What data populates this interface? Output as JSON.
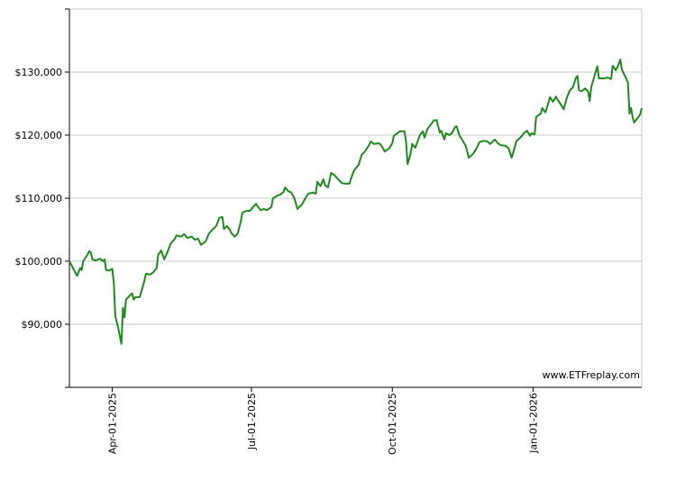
{
  "chart_data": {
    "type": "line",
    "color": "#1e8a1e",
    "watermark": "www.ETFreplay.com",
    "grid": true,
    "ylim": [
      80000,
      140000
    ],
    "yticks": [
      {
        "value": 90000,
        "label": "$90,000"
      },
      {
        "value": 100000,
        "label": "$100,000"
      },
      {
        "value": 110000,
        "label": "$110,000"
      },
      {
        "value": 120000,
        "label": "$120,000"
      },
      {
        "value": 130000,
        "label": "$130,000"
      }
    ],
    "xlim": [
      "2025-03-04",
      "2026-03-13"
    ],
    "xticks": [
      {
        "value": "2025-04-01",
        "label": "Apr-01-2025"
      },
      {
        "value": "2025-07-01",
        "label": "Jul-01-2025"
      },
      {
        "value": "2025-10-01",
        "label": "Oct-01-2025"
      },
      {
        "value": "2026-01-01",
        "label": "Jan-01-2026"
      }
    ],
    "x": [
      "2025-03-04",
      "2025-03-07",
      "2025-03-09",
      "2025-03-11",
      "2025-03-12",
      "2025-03-13",
      "2025-03-16",
      "2025-03-17",
      "2025-03-18",
      "2025-03-19",
      "2025-03-21",
      "2025-03-24",
      "2025-03-26",
      "2025-03-27",
      "2025-03-28",
      "2025-03-30",
      "2025-04-01",
      "2025-04-02",
      "2025-04-03",
      "2025-04-05",
      "2025-04-07",
      "2025-04-08",
      "2025-04-09",
      "2025-04-10",
      "2025-04-13",
      "2025-04-14",
      "2025-04-15",
      "2025-04-16",
      "2025-04-19",
      "2025-04-22",
      "2025-04-23",
      "2025-04-26",
      "2025-04-28",
      "2025-04-30",
      "2025-05-01",
      "2025-05-03",
      "2025-05-05",
      "2025-05-07",
      "2025-05-09",
      "2025-05-12",
      "2025-05-13",
      "2025-05-16",
      "2025-05-18",
      "2025-05-20",
      "2025-05-23",
      "2025-05-25",
      "2025-05-27",
      "2025-05-29",
      "2025-06-01",
      "2025-06-03",
      "2025-06-05",
      "2025-06-08",
      "2025-06-10",
      "2025-06-12",
      "2025-06-13",
      "2025-06-15",
      "2025-06-17",
      "2025-06-18",
      "2025-06-20",
      "2025-06-22",
      "2025-06-24",
      "2025-06-25",
      "2025-06-28",
      "2025-06-30",
      "2025-07-02",
      "2025-07-04",
      "2025-07-05",
      "2025-07-07",
      "2025-07-09",
      "2025-07-11",
      "2025-07-14",
      "2025-07-15",
      "2025-07-18",
      "2025-07-20",
      "2025-07-22",
      "2025-07-23",
      "2025-07-25",
      "2025-07-27",
      "2025-07-29",
      "2025-07-31",
      "2025-08-03",
      "2025-08-05",
      "2025-08-07",
      "2025-08-10",
      "2025-08-12",
      "2025-08-13",
      "2025-08-15",
      "2025-08-17",
      "2025-08-18",
      "2025-08-20",
      "2025-08-22",
      "2025-08-24",
      "2025-08-27",
      "2025-08-29",
      "2025-08-31",
      "2025-09-03",
      "2025-09-04",
      "2025-09-06",
      "2025-09-09",
      "2025-09-11",
      "2025-09-13",
      "2025-09-15",
      "2025-09-17",
      "2025-09-19",
      "2025-09-22",
      "2025-09-23",
      "2025-09-25",
      "2025-09-26",
      "2025-09-29",
      "2025-10-01",
      "2025-10-02",
      "2025-10-05",
      "2025-10-06",
      "2025-10-09",
      "2025-10-10",
      "2025-10-11",
      "2025-10-13",
      "2025-10-14",
      "2025-10-16",
      "2025-10-18",
      "2025-10-19",
      "2025-10-21",
      "2025-10-22",
      "2025-10-24",
      "2025-10-26",
      "2025-10-28",
      "2025-10-30",
      "2025-11-01",
      "2025-11-02",
      "2025-11-04",
      "2025-11-05",
      "2025-11-07",
      "2025-11-09",
      "2025-11-11",
      "2025-11-12",
      "2025-11-14",
      "2025-11-16",
      "2025-11-18",
      "2025-11-20",
      "2025-11-23",
      "2025-11-25",
      "2025-11-27",
      "2025-11-30",
      "2025-12-02",
      "2025-12-04",
      "2025-12-07",
      "2025-12-09",
      "2025-12-11",
      "2025-12-14",
      "2025-12-16",
      "2025-12-18",
      "2025-12-20",
      "2025-12-21",
      "2025-12-24",
      "2025-12-26",
      "2025-12-28",
      "2025-12-30",
      "2025-12-31",
      "2026-01-02",
      "2026-01-03",
      "2026-01-06",
      "2026-01-07",
      "2026-01-09",
      "2026-01-10",
      "2026-01-12",
      "2026-01-14",
      "2026-01-16",
      "2026-01-17",
      "2026-01-19",
      "2026-01-21",
      "2026-01-23",
      "2026-01-25",
      "2026-01-27",
      "2026-01-29",
      "2026-01-30",
      "2026-01-31",
      "2026-02-02",
      "2026-02-04",
      "2026-02-06",
      "2026-02-07",
      "2026-02-08",
      "2026-02-10",
      "2026-02-12",
      "2026-02-13",
      "2026-02-16",
      "2026-02-19",
      "2026-02-21",
      "2026-02-22",
      "2026-02-24",
      "2026-02-25",
      "2026-02-27",
      "2026-02-28",
      "2026-03-02",
      "2026-03-04",
      "2026-03-05",
      "2026-03-06",
      "2026-03-07",
      "2026-03-08",
      "2026-03-10",
      "2026-03-12",
      "2026-03-13"
    ],
    "values": [
      100000,
      98600,
      97700,
      98900,
      98600,
      100000,
      101100,
      101600,
      101400,
      100300,
      100100,
      100400,
      100000,
      100300,
      98600,
      98500,
      98800,
      96700,
      91300,
      89300,
      86900,
      92600,
      91100,
      93900,
      94700,
      94900,
      93900,
      94300,
      94300,
      96900,
      98000,
      97900,
      98300,
      98900,
      101000,
      101700,
      100300,
      101400,
      102700,
      103600,
      104100,
      103900,
      104300,
      103700,
      103900,
      103400,
      103600,
      102600,
      103100,
      104300,
      104900,
      105600,
      106900,
      107000,
      105100,
      105600,
      104900,
      104400,
      103900,
      104400,
      106300,
      107700,
      108000,
      108000,
      108600,
      109100,
      108700,
      108100,
      108300,
      108100,
      108600,
      110000,
      110400,
      110600,
      111000,
      111700,
      111100,
      110900,
      110000,
      108300,
      109000,
      109900,
      110700,
      110900,
      110700,
      112600,
      111900,
      113000,
      112100,
      111700,
      114000,
      113700,
      112900,
      112400,
      112300,
      112300,
      113100,
      114400,
      115300,
      116900,
      117400,
      118100,
      119000,
      118600,
      118700,
      118600,
      117900,
      117400,
      117900,
      118700,
      119900,
      120400,
      120600,
      120600,
      118900,
      115400,
      117100,
      118600,
      118000,
      119300,
      120000,
      120600,
      119600,
      121000,
      121600,
      122300,
      122400,
      120400,
      120700,
      119300,
      120300,
      120000,
      120300,
      121300,
      121400,
      119900,
      119100,
      118300,
      116400,
      117100,
      117900,
      118900,
      119100,
      119000,
      118600,
      119300,
      118700,
      118400,
      118300,
      117900,
      116400,
      118100,
      119000,
      119700,
      120300,
      120700,
      119900,
      120300,
      120100,
      122900,
      123400,
      124300,
      123600,
      124300,
      126000,
      125300,
      126100,
      125600,
      124900,
      124100,
      125900,
      127100,
      127600,
      129100,
      129400,
      127100,
      127000,
      127400,
      126900,
      125400,
      127600,
      129300,
      130900,
      129000,
      129000,
      129100,
      128900,
      131000,
      130300,
      130700,
      132000,
      130400,
      129400,
      128300,
      123400,
      124300,
      122900,
      122000,
      122600,
      123300,
      124300
    ]
  }
}
